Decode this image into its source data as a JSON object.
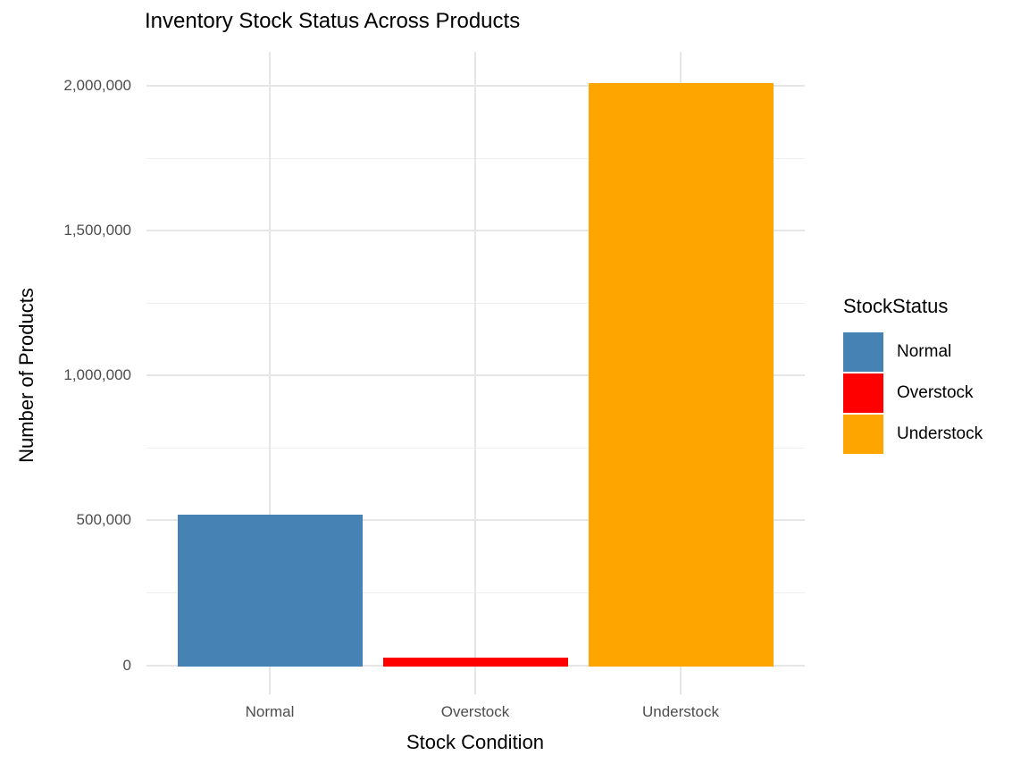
{
  "chart_data": {
    "type": "bar",
    "title": "Inventory Stock Status Across Products",
    "xlabel": "Stock Condition",
    "ylabel": "Number of Products",
    "categories": [
      "Normal",
      "Overstock",
      "Understock"
    ],
    "series": [
      {
        "name": "StockStatus",
        "values": [
          520000,
          25000,
          2010000
        ]
      }
    ],
    "bar_colors": [
      "#4682B4",
      "#FF0000",
      "#FFA500"
    ],
    "legend": {
      "title": "StockStatus",
      "position": "right",
      "entries": [
        {
          "label": "Normal",
          "color": "#4682B4"
        },
        {
          "label": "Overstock",
          "color": "#FF0000"
        },
        {
          "label": "Understock",
          "color": "#FFA500"
        }
      ]
    },
    "ylim": [
      0,
      2110000
    ],
    "yticks": {
      "values": [
        0,
        500000,
        1000000,
        1500000,
        2000000
      ],
      "labels": [
        "0",
        "500,000",
        "1,000,000",
        "1,500,000",
        "2,000,000"
      ]
    },
    "minor_yticks": [
      250000,
      750000,
      1250000,
      1750000
    ],
    "grid": true,
    "colors": {
      "grid_major": "#E6E6E6",
      "grid_minor": "#EFEFEF",
      "tick_text": "#4D4D4D",
      "text": "#000000",
      "background": "#FFFFFF"
    }
  }
}
